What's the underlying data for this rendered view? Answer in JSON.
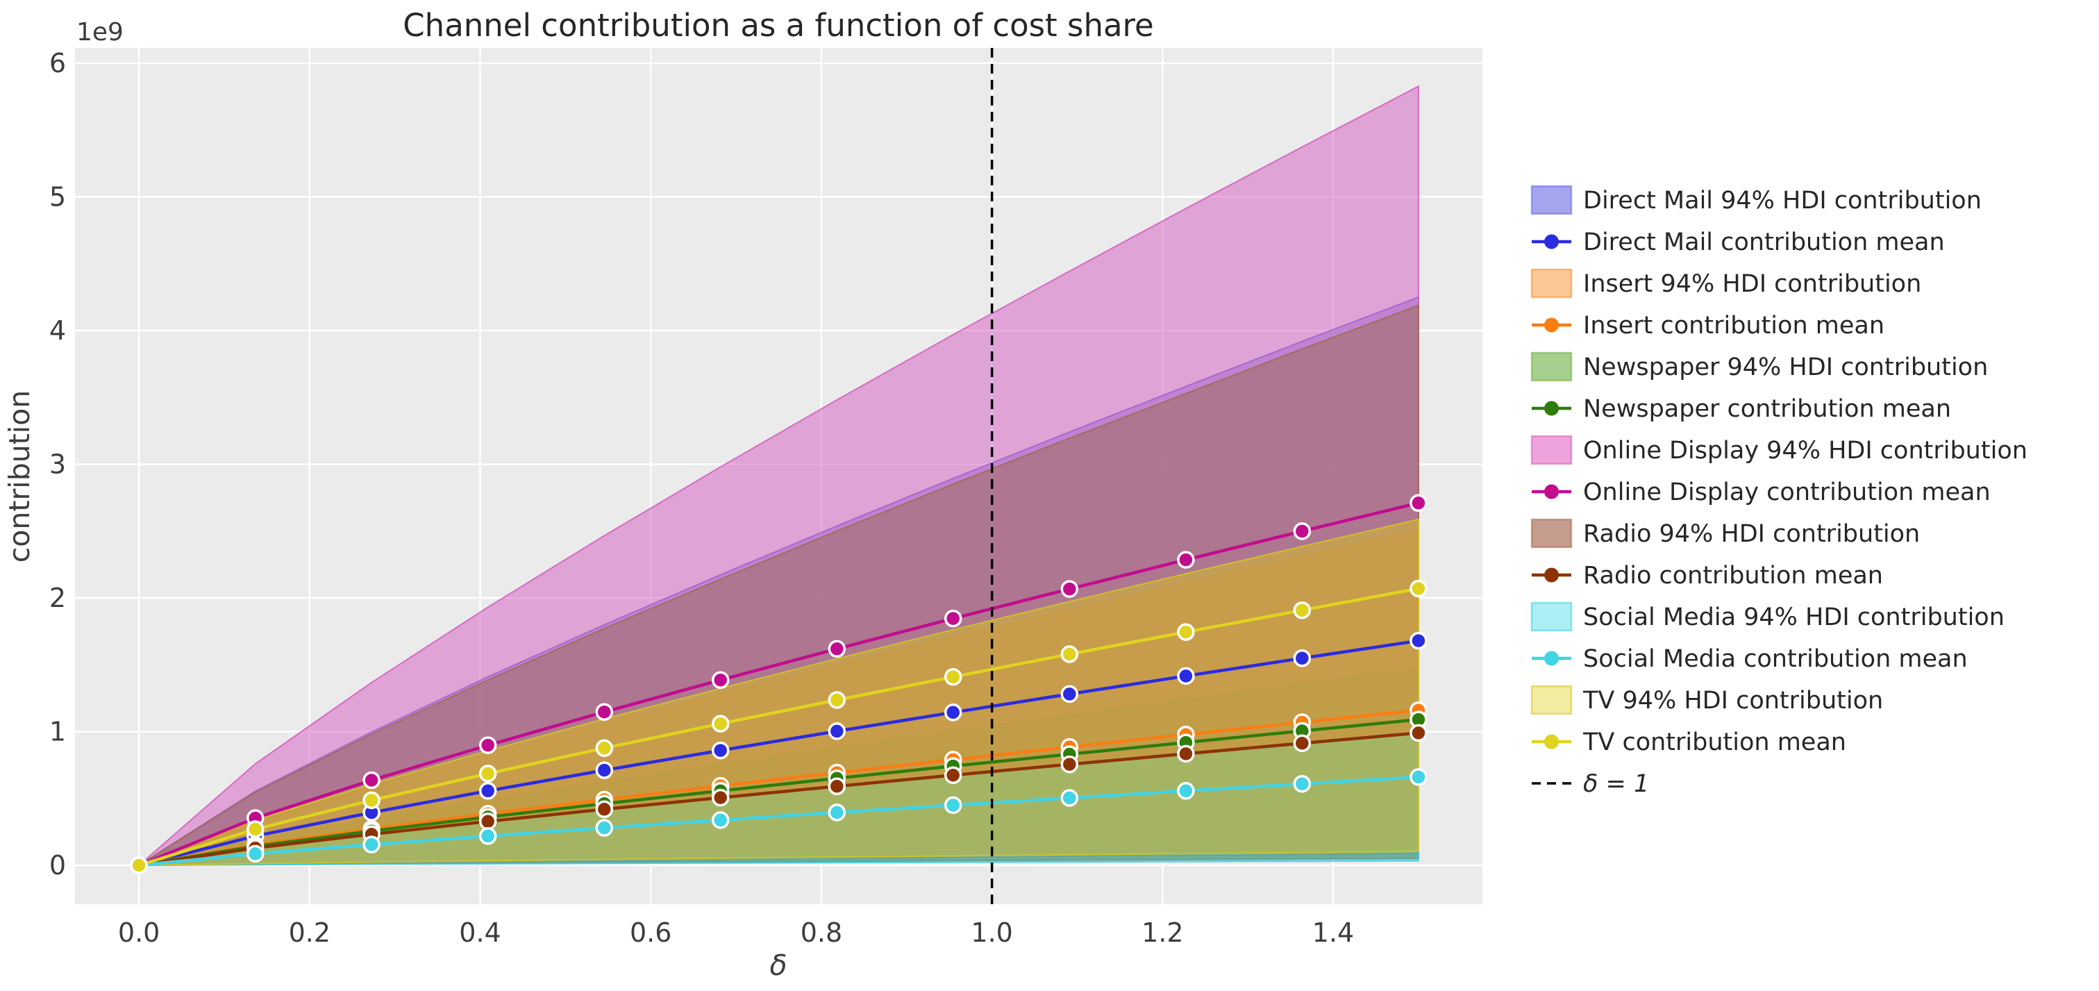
{
  "title": "Channel contribution as a function of cost share",
  "axes": {
    "xlabel": "δ",
    "ylabel": "contribution",
    "offset_label": "1e9",
    "x_tick_labels": [
      "0.0",
      "0.2",
      "0.4",
      "0.6",
      "0.8",
      "1.0",
      "1.2",
      "1.4"
    ],
    "x_tick_values": [
      0,
      0.2,
      0.4,
      0.6,
      0.8,
      1.0,
      1.2,
      1.4
    ],
    "y_tick_labels": [
      "0",
      "1",
      "2",
      "3",
      "4",
      "5",
      "6"
    ],
    "y_tick_values": [
      0,
      1,
      2,
      3,
      4,
      5,
      6
    ],
    "x_range": [
      -0.075,
      1.575
    ],
    "y_range_1e9": [
      -0.291,
      6.114
    ],
    "grid": true
  },
  "colors": {
    "figure_bg": "#ffffff",
    "axes_bg": "#ebebeb",
    "grid": "#ffffff",
    "tick_text": "#3d3d3d",
    "title_text": "#262626",
    "vline": "#000000"
  },
  "vline": {
    "x": 1.0,
    "label": "δ = 1"
  },
  "chart_data": {
    "type": "area",
    "title": "Channel contribution as a function of cost share",
    "xlabel": "δ",
    "ylabel": "contribution",
    "y_unit": "1e9",
    "legend_position": "right",
    "x": [
      0.0,
      0.1364,
      0.2727,
      0.4091,
      0.5455,
      0.6818,
      0.8182,
      0.9545,
      1.0909,
      1.2273,
      1.3636,
      1.5
    ],
    "series": [
      {
        "name": "Direct Mail",
        "hdi_label": "Direct Mail 94% HDI contribution",
        "mean_label": "Direct Mail contribution mean",
        "line_color": "#2b2be0",
        "fill_color": "#6969dd",
        "legend_patch_color": "#a4a4ef",
        "mean": [
          0,
          0.219,
          0.394,
          0.557,
          0.711,
          0.859,
          1.003,
          1.144,
          1.281,
          1.416,
          1.549,
          1.68
        ],
        "hdi_lower": [
          0,
          0.011,
          0.02,
          0.028,
          0.036,
          0.043,
          0.05,
          0.057,
          0.064,
          0.071,
          0.077,
          0.084
        ],
        "hdi_upper": [
          0,
          0.554,
          0.997,
          1.409,
          1.799,
          2.173,
          2.538,
          2.894,
          3.241,
          3.582,
          3.919,
          4.25
        ]
      },
      {
        "name": "Insert",
        "hdi_label": "Insert 94% HDI contribution",
        "mean_label": "Insert contribution mean",
        "line_color": "#f97d12",
        "fill_color": "#f58a2a",
        "legend_patch_color": "#fbc896",
        "mean": [
          0,
          0.151,
          0.272,
          0.385,
          0.491,
          0.594,
          0.693,
          0.79,
          0.885,
          0.978,
          1.07,
          1.16
        ],
        "hdi_lower": [
          0,
          0.008,
          0.014,
          0.019,
          0.025,
          0.03,
          0.035,
          0.04,
          0.044,
          0.049,
          0.053,
          0.058
        ],
        "hdi_upper": [
          0,
          0.326,
          0.588,
          0.831,
          1.061,
          1.282,
          1.497,
          1.707,
          1.912,
          2.113,
          2.311,
          2.506
        ]
      },
      {
        "name": "Newspaper",
        "hdi_label": "Newspaper 94% HDI contribution",
        "mean_label": "Newspaper contribution mean",
        "line_color": "#2e7d0c",
        "fill_color": "#71ab41",
        "legend_patch_color": "#a7cf8d",
        "mean": [
          0,
          0.142,
          0.256,
          0.361,
          0.461,
          0.557,
          0.651,
          0.742,
          0.831,
          0.919,
          1.005,
          1.09
        ],
        "hdi_lower": [
          0,
          0.007,
          0.013,
          0.018,
          0.023,
          0.028,
          0.033,
          0.037,
          0.042,
          0.046,
          0.05,
          0.055
        ],
        "hdi_upper": [
          0,
          0.192,
          0.346,
          0.487,
          0.622,
          0.752,
          0.879,
          1.002,
          1.122,
          1.241,
          1.357,
          1.472
        ]
      },
      {
        "name": "Online Display",
        "hdi_label": "Online Display 94% HDI contribution",
        "mean_label": "Online Display contribution mean",
        "line_color": "#c20c8e",
        "fill_color": "#d45cc0",
        "legend_patch_color": "#efa3dc",
        "mean": [
          0,
          0.353,
          0.636,
          0.898,
          1.147,
          1.386,
          1.619,
          1.846,
          2.067,
          2.285,
          2.499,
          2.71
        ],
        "hdi_lower": [
          0,
          0.018,
          0.032,
          0.045,
          0.057,
          0.069,
          0.081,
          0.092,
          0.103,
          0.114,
          0.125,
          0.136
        ],
        "hdi_upper": [
          0,
          0.759,
          1.367,
          1.931,
          2.466,
          2.98,
          3.481,
          3.969,
          4.444,
          4.913,
          5.373,
          5.827
        ]
      },
      {
        "name": "Radio",
        "hdi_label": "Radio 94% HDI contribution",
        "mean_label": "Radio contribution mean",
        "line_color": "#8c3305",
        "fill_color": "#a06a50",
        "legend_patch_color": "#c59c8d",
        "mean": [
          0,
          0.129,
          0.232,
          0.328,
          0.419,
          0.506,
          0.591,
          0.674,
          0.755,
          0.834,
          0.913,
          0.99
        ],
        "hdi_lower": [
          0,
          0.006,
          0.012,
          0.016,
          0.021,
          0.025,
          0.03,
          0.034,
          0.038,
          0.042,
          0.046,
          0.05
        ],
        "hdi_upper": [
          0,
          0.546,
          0.981,
          1.387,
          1.772,
          2.14,
          2.5,
          2.851,
          3.194,
          3.528,
          3.862,
          4.188
        ]
      },
      {
        "name": "Social Media",
        "hdi_label": "Social Media 94% HDI contribution",
        "mean_label": "Social Media contribution mean",
        "line_color": "#41d3e6",
        "fill_color": "#38cfe0",
        "legend_patch_color": "#abeff5",
        "mean": [
          0,
          0.086,
          0.155,
          0.219,
          0.28,
          0.338,
          0.395,
          0.45,
          0.504,
          0.557,
          0.609,
          0.66
        ],
        "hdi_lower": [
          0,
          0.004,
          0.008,
          0.011,
          0.014,
          0.017,
          0.02,
          0.023,
          0.025,
          0.028,
          0.03,
          0.033
        ],
        "hdi_upper": [
          0,
          0.129,
          0.233,
          0.329,
          0.42,
          0.507,
          0.593,
          0.675,
          0.756,
          0.836,
          0.914,
          0.99
        ]
      },
      {
        "name": "TV",
        "hdi_label": "TV 94% HDI contribution",
        "mean_label": "TV contribution mean",
        "line_color": "#e0d31e",
        "fill_color": "#d6c51e",
        "legend_patch_color": "#f0eca0",
        "mean": [
          0,
          0.27,
          0.486,
          0.686,
          0.876,
          1.059,
          1.236,
          1.409,
          1.579,
          1.745,
          1.908,
          2.07
        ],
        "hdi_lower": [
          0,
          0.013,
          0.024,
          0.034,
          0.044,
          0.053,
          0.062,
          0.07,
          0.079,
          0.087,
          0.095,
          0.104
        ],
        "hdi_upper": [
          0,
          0.337,
          0.607,
          0.857,
          1.095,
          1.323,
          1.545,
          1.762,
          1.973,
          2.181,
          2.385,
          2.588
        ]
      }
    ]
  }
}
